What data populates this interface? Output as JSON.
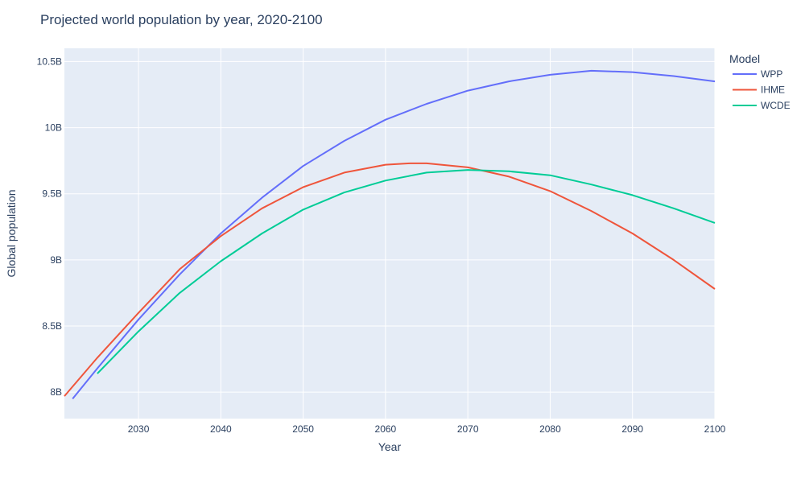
{
  "chart_data": {
    "type": "line",
    "title": "Projected world population by year, 2020-2100",
    "xlabel": "Year",
    "ylabel": "Global population",
    "xlim": [
      2021,
      2100
    ],
    "ylim": [
      7.8,
      10.6
    ],
    "x_ticks": [
      2030,
      2040,
      2050,
      2060,
      2070,
      2080,
      2090,
      2100
    ],
    "x_tick_labels": [
      "2030",
      "2040",
      "2050",
      "2060",
      "2070",
      "2080",
      "2090",
      "2100"
    ],
    "y_ticks": [
      8,
      8.5,
      9,
      9.5,
      10,
      10.5
    ],
    "y_tick_labels": [
      "8B",
      "8.5B",
      "9B",
      "9.5B",
      "10B",
      "10.5B"
    ],
    "grid": true,
    "legend_title": "Model",
    "legend_position": "top-right",
    "series": [
      {
        "name": "WPP",
        "color": "#636efa",
        "x": [
          2022,
          2025,
          2030,
          2035,
          2040,
          2045,
          2050,
          2055,
          2060,
          2065,
          2070,
          2075,
          2080,
          2085,
          2090,
          2095,
          2100
        ],
        "y": [
          7.95,
          8.18,
          8.55,
          8.89,
          9.2,
          9.47,
          9.71,
          9.9,
          10.06,
          10.18,
          10.28,
          10.35,
          10.4,
          10.43,
          10.42,
          10.39,
          10.35
        ]
      },
      {
        "name": "IHME",
        "color": "#ef553b",
        "x": [
          2021,
          2025,
          2030,
          2035,
          2040,
          2045,
          2050,
          2055,
          2060,
          2063,
          2065,
          2070,
          2075,
          2080,
          2085,
          2090,
          2095,
          2100
        ],
        "y": [
          7.97,
          8.26,
          8.6,
          8.93,
          9.18,
          9.39,
          9.55,
          9.66,
          9.72,
          9.73,
          9.73,
          9.7,
          9.63,
          9.52,
          9.37,
          9.2,
          9.0,
          8.78
        ]
      },
      {
        "name": "WCDE",
        "color": "#00cc96",
        "x": [
          2025,
          2030,
          2035,
          2040,
          2045,
          2050,
          2055,
          2060,
          2065,
          2070,
          2075,
          2080,
          2085,
          2090,
          2095,
          2100
        ],
        "y": [
          8.14,
          8.46,
          8.75,
          8.99,
          9.2,
          9.38,
          9.51,
          9.6,
          9.66,
          9.68,
          9.67,
          9.64,
          9.57,
          9.49,
          9.39,
          9.28
        ]
      }
    ]
  }
}
